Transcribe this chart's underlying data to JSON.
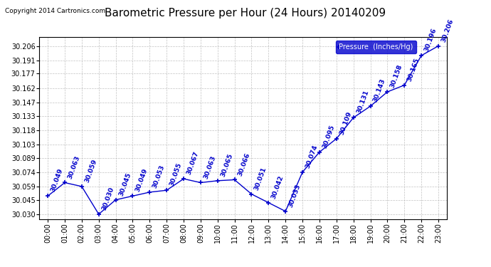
{
  "title": "Barometric Pressure per Hour (24 Hours) 20140209",
  "copyright": "Copyright 2014 Cartronics.com",
  "legend_label": "Pressure  (Inches/Hg)",
  "hours": [
    0,
    1,
    2,
    3,
    4,
    5,
    6,
    7,
    8,
    9,
    10,
    11,
    12,
    13,
    14,
    15,
    16,
    17,
    18,
    19,
    20,
    21,
    22,
    23
  ],
  "x_labels": [
    "00:00",
    "01:00",
    "02:00",
    "03:00",
    "04:00",
    "05:00",
    "06:00",
    "07:00",
    "08:00",
    "09:00",
    "10:00",
    "11:00",
    "12:00",
    "13:00",
    "14:00",
    "15:00",
    "16:00",
    "17:00",
    "18:00",
    "19:00",
    "20:00",
    "21:00",
    "22:00",
    "23:00"
  ],
  "pressure": [
    30.049,
    30.063,
    30.059,
    30.03,
    30.045,
    30.049,
    30.053,
    30.055,
    30.067,
    30.063,
    30.065,
    30.066,
    30.051,
    30.042,
    30.033,
    30.074,
    30.095,
    30.109,
    30.131,
    30.143,
    30.158,
    30.165,
    30.196,
    30.206
  ],
  "ylim_min": 30.025,
  "ylim_max": 30.215,
  "line_color": "#0000cc",
  "bg_color": "#ffffff",
  "plot_bg_color": "#ffffff",
  "grid_color": "#bbbbbb",
  "title_fontsize": 11,
  "label_fontsize": 7,
  "tick_fontsize": 7,
  "annotation_fontsize": 6.5,
  "copyright_fontsize": 6.5,
  "ytick_vals": [
    30.03,
    30.045,
    30.059,
    30.074,
    30.089,
    30.103,
    30.118,
    30.133,
    30.147,
    30.162,
    30.177,
    30.191,
    30.206
  ]
}
